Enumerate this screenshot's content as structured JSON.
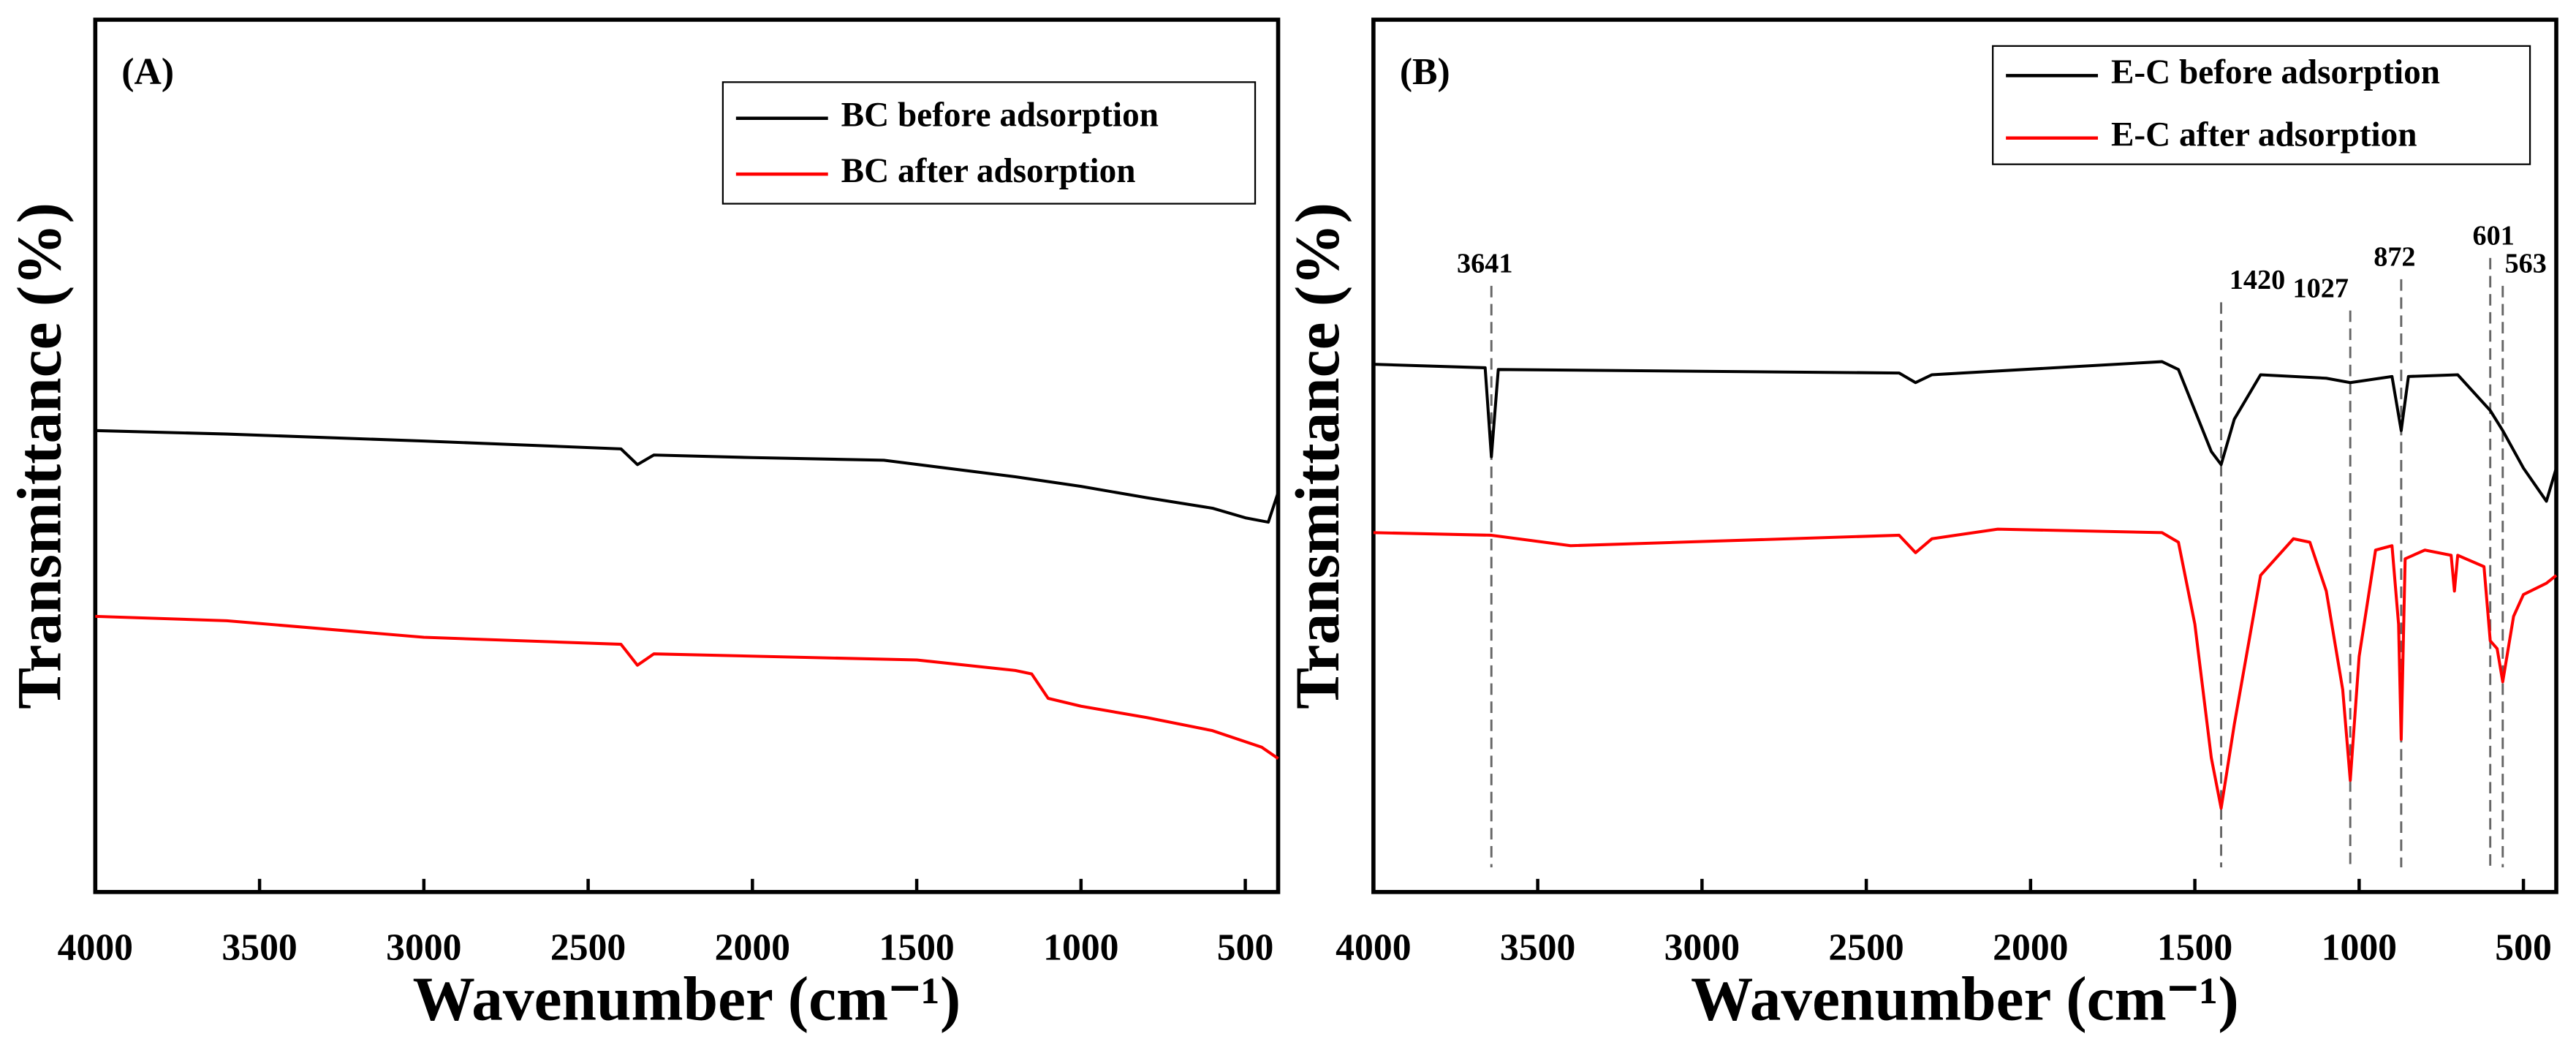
{
  "chart_data": [
    {
      "type": "line",
      "label": "(A)",
      "xlabel": "Wavenumber (cm⁻¹)",
      "ylabel": "Transmittance (%)",
      "xlim": [
        4000,
        400
      ],
      "ylim": [
        0,
        100
      ],
      "xticks": [
        4000,
        3500,
        3000,
        2500,
        2000,
        1500,
        1000,
        500
      ],
      "series": [
        {
          "name": "BC before adsorption",
          "color": "#000000",
          "x": [
            4000,
            3600,
            3000,
            2400,
            2350,
            2300,
            2000,
            1600,
            1200,
            1000,
            800,
            600,
            500,
            430,
            400
          ],
          "values": [
            52.9,
            52.5,
            51.7,
            50.8,
            49,
            50.1,
            49.8,
            49.5,
            47.6,
            46.5,
            45.2,
            44,
            42.9,
            42.4,
            45.8
          ]
        },
        {
          "name": "BC after adsorption",
          "color": "#ff0000",
          "x": [
            4000,
            3600,
            3000,
            2400,
            2350,
            2300,
            1500,
            1200,
            1150,
            1100,
            1000,
            800,
            600,
            450,
            400
          ],
          "values": [
            31.6,
            31.1,
            29.2,
            28.4,
            26,
            27.3,
            26.6,
            25.4,
            25,
            22.2,
            21.3,
            20,
            18.5,
            16.6,
            15.3
          ]
        }
      ]
    },
    {
      "type": "line",
      "label": "(B)",
      "xlabel": "Wavenumber (cm⁻¹)",
      "ylabel": "Transmittance (%)",
      "xlim": [
        4000,
        400
      ],
      "ylim": [
        0,
        100
      ],
      "xticks": [
        4000,
        3500,
        3000,
        2500,
        2000,
        1500,
        1000,
        500
      ],
      "peaks": [
        3641,
        1420,
        1027,
        872,
        601,
        563
      ],
      "series": [
        {
          "name": "E-C before adsorption",
          "color": "#000000",
          "x": [
            4000,
            3660,
            3641,
            3620,
            2400,
            2350,
            2300,
            1600,
            1550,
            1500,
            1450,
            1420,
            1380,
            1300,
            1100,
            1027,
            900,
            872,
            850,
            700,
            601,
            563,
            500,
            430,
            400
          ],
          "values": [
            60.5,
            60.1,
            49.9,
            59.9,
            59.5,
            58.4,
            59.3,
            60.8,
            59.9,
            55.2,
            50.5,
            49,
            54.2,
            59.3,
            58.9,
            58.4,
            59.1,
            52.9,
            59.1,
            59.3,
            55.2,
            52.9,
            48.6,
            44.8,
            48.6
          ]
        },
        {
          "name": "E-C after adsorption",
          "color": "#ff0000",
          "x": [
            4000,
            3641,
            3400,
            2400,
            2350,
            2300,
            2100,
            1600,
            1550,
            1500,
            1450,
            1420,
            1380,
            1300,
            1200,
            1150,
            1100,
            1050,
            1027,
            1000,
            950,
            900,
            880,
            872,
            860,
            800,
            720,
            710,
            700,
            620,
            601,
            580,
            563,
            530,
            500,
            430,
            400
          ],
          "values": [
            41.2,
            40.9,
            39.7,
            40.9,
            38.9,
            40.5,
            41.6,
            41.2,
            40.1,
            30.7,
            15.4,
            9.6,
            19.2,
            36.3,
            40.5,
            40.1,
            34.5,
            23.2,
            12.8,
            27,
            39.2,
            39.7,
            30.7,
            17.5,
            38.2,
            39.2,
            38.6,
            34.5,
            38.6,
            37.3,
            28.8,
            27.9,
            24.1,
            31.6,
            34.1,
            35.4,
            36.3
          ]
        }
      ]
    }
  ]
}
